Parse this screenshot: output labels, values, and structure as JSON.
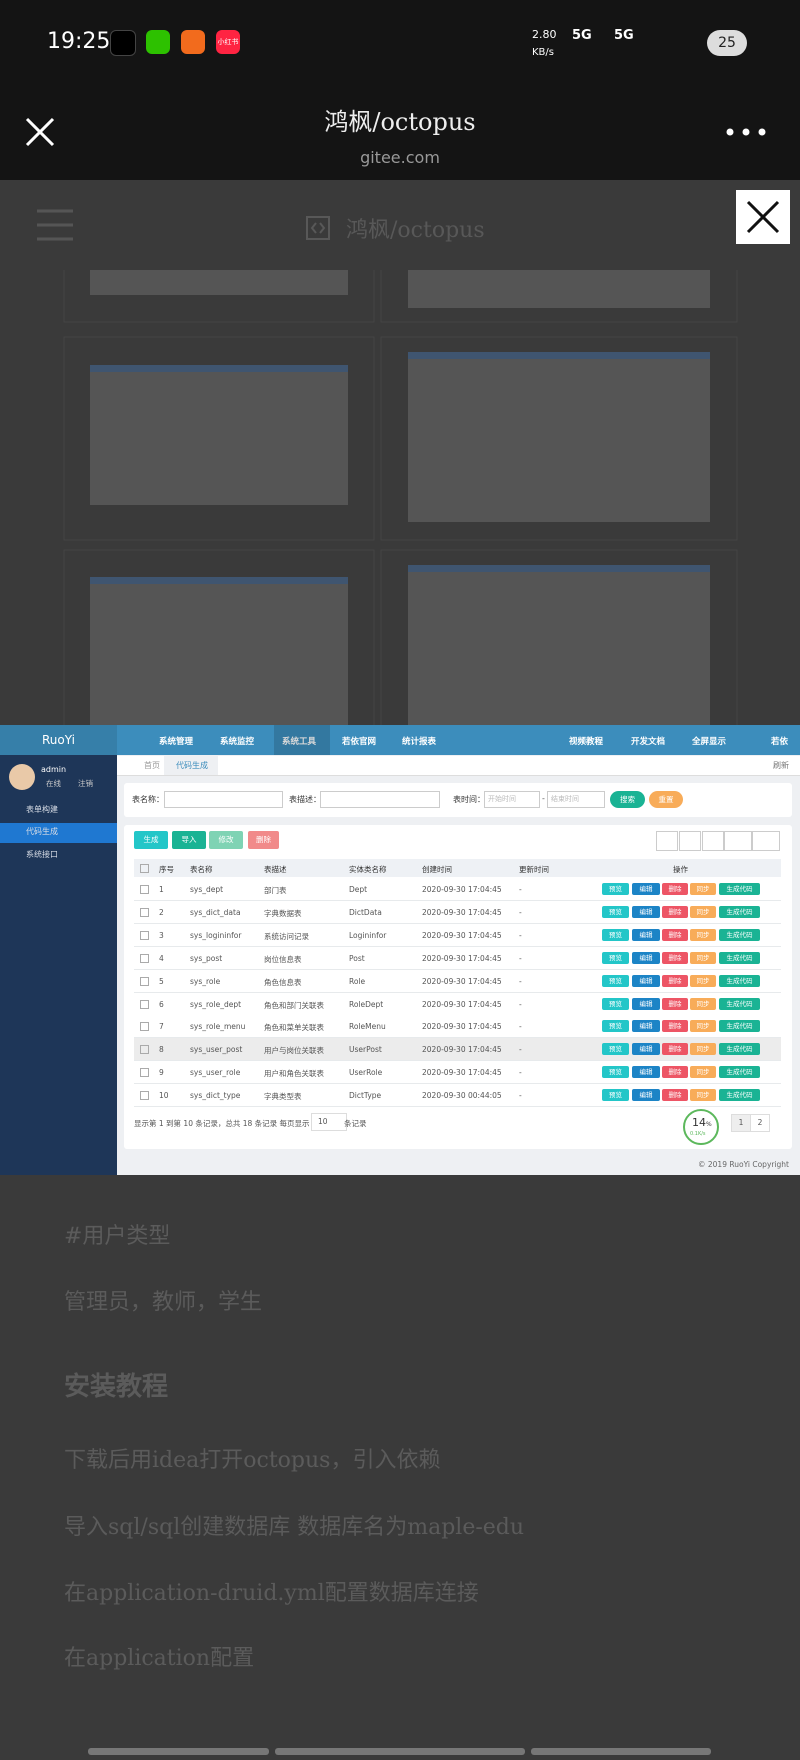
{
  "status": {
    "time": "19:25",
    "app_label": "小红书",
    "speed": "2.80",
    "speed_unit": "KB/s",
    "net1": "5G",
    "net2": "5G",
    "battery": "25"
  },
  "header": {
    "title": "鸿枫/octopus",
    "domain": "gitee.com"
  },
  "viewer": {
    "title": "鸿枫/octopus"
  },
  "ruoyi": {
    "logo": "RuoYi",
    "nav": [
      "系统管理",
      "系统监控",
      "系统工具",
      "若依官网",
      "统计报表"
    ],
    "nav_right": [
      "视频教程",
      "开发文档",
      "全屏显示",
      "若依"
    ],
    "user": {
      "name": "admin",
      "online": "在线",
      "logout": "注销"
    },
    "menu": [
      "表单构建",
      "代码生成",
      "系统接口"
    ],
    "tabs": [
      "首页",
      "代码生成"
    ],
    "refresh": "刷新",
    "search": {
      "labels": [
        "表名称：",
        "表描述：",
        "表时间："
      ],
      "start": "开始时间",
      "dash": "-",
      "end": "结束时间",
      "buttons": [
        "搜索",
        "重置"
      ]
    },
    "toolbar": [
      "生成",
      "导入",
      "修改",
      "删除"
    ],
    "columns": [
      "序号",
      "表名称",
      "表描述",
      "实体类名称",
      "创建时间",
      "更新时间",
      "操作"
    ],
    "rows": [
      [
        1,
        "sys_dept",
        "部门表",
        "Dept",
        "2020-09-30 17:04:45",
        "-"
      ],
      [
        2,
        "sys_dict_data",
        "字典数据表",
        "DictData",
        "2020-09-30 17:04:45",
        "-"
      ],
      [
        3,
        "sys_logininfor",
        "系统访问记录",
        "Logininfor",
        "2020-09-30 17:04:45",
        "-"
      ],
      [
        4,
        "sys_post",
        "岗位信息表",
        "Post",
        "2020-09-30 17:04:45",
        "-"
      ],
      [
        5,
        "sys_role",
        "角色信息表",
        "Role",
        "2020-09-30 17:04:45",
        "-"
      ],
      [
        6,
        "sys_role_dept",
        "角色和部门关联表",
        "RoleDept",
        "2020-09-30 17:04:45",
        "-"
      ],
      [
        7,
        "sys_role_menu",
        "角色和菜单关联表",
        "RoleMenu",
        "2020-09-30 17:04:45",
        "-"
      ],
      [
        8,
        "sys_user_post",
        "用户与岗位关联表",
        "UserPost",
        "2020-09-30 17:04:45",
        "-"
      ],
      [
        9,
        "sys_user_role",
        "用户和角色关联表",
        "UserRole",
        "2020-09-30 17:04:45",
        "-"
      ],
      [
        10,
        "sys_dict_type",
        "字典类型表",
        "DictType",
        "2020-09-30 00:44:05",
        "-"
      ]
    ],
    "actions": [
      "预览",
      "编辑",
      "删除",
      "同步",
      "生成代码"
    ],
    "footer": {
      "summary": "显示第 1 到第 10 条记录，总共 18 条记录  每页显示",
      "page_size": "10",
      "unit": "条记录",
      "pages": [
        "1",
        "2"
      ]
    },
    "badge": {
      "value": "14",
      "unit": "%",
      "speed": "0.1K/s"
    },
    "copyright": "© 2019 RuoYi Copyright"
  },
  "doc": {
    "lines": [
      "#用户类型",
      "管理员，教师，学生",
      "安装教程",
      "下载后用idea打开octopus，引入依赖",
      "导入sql/sql创建数据库 数据库名为maple-edu",
      "在application-druid.yml配置数据库连接",
      "在application配置"
    ]
  }
}
